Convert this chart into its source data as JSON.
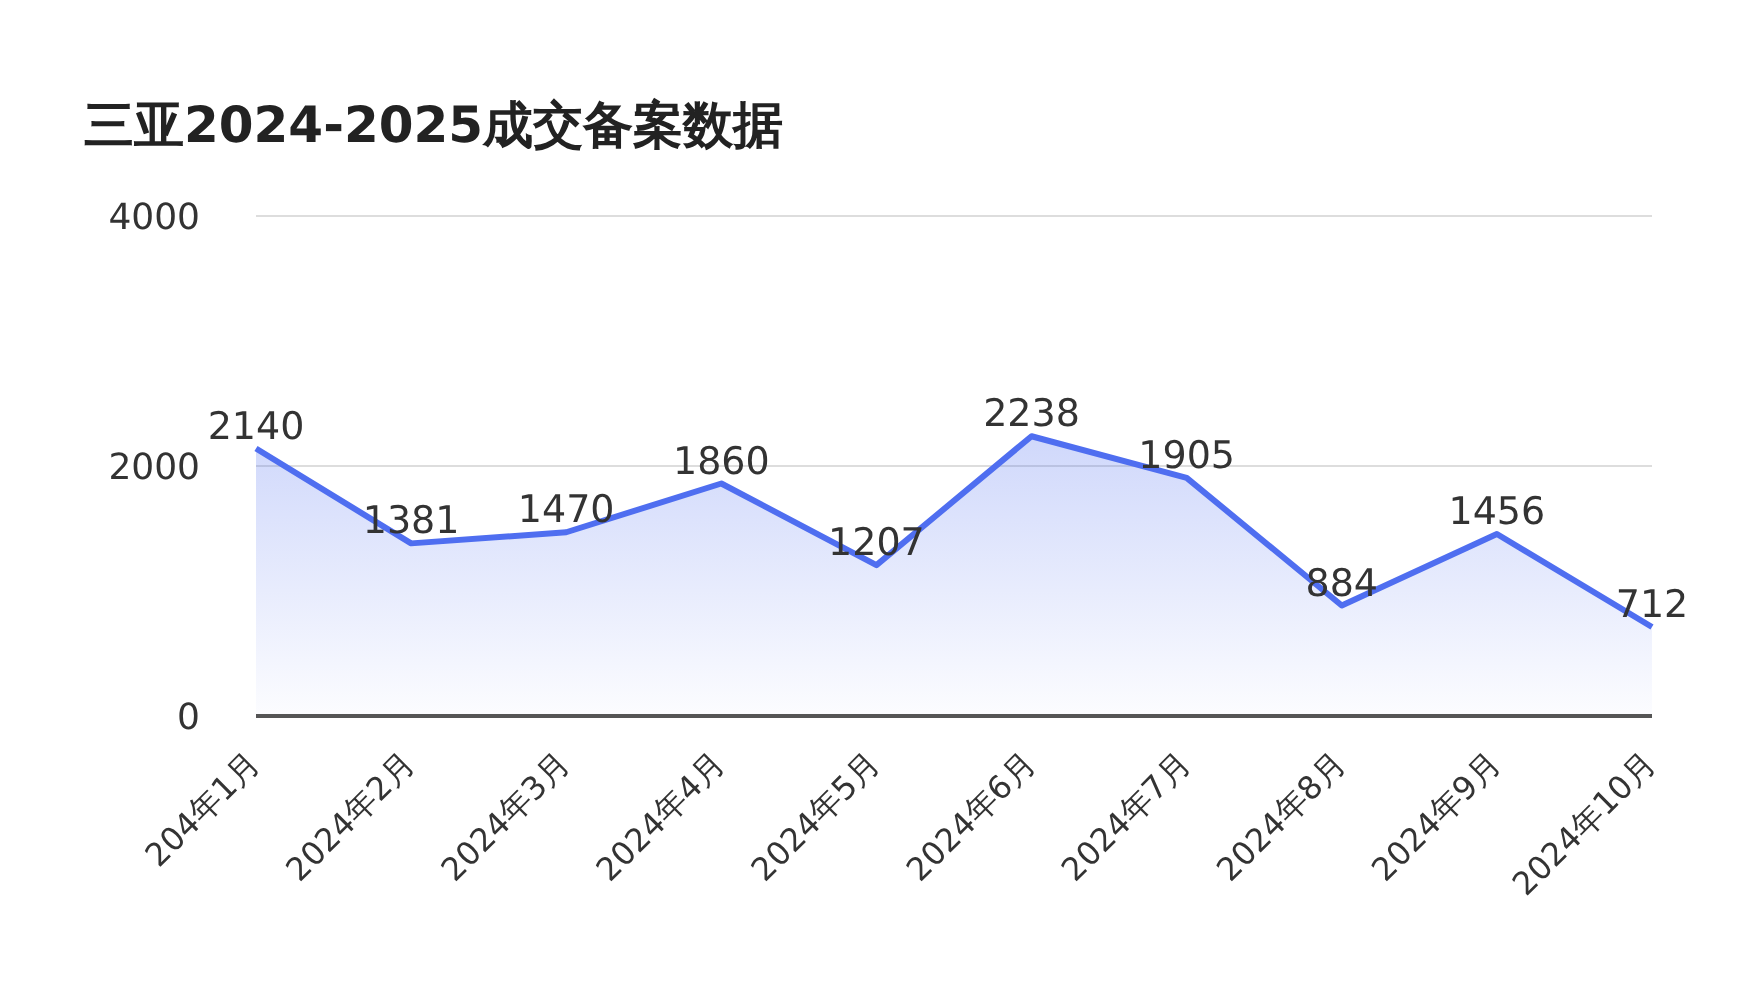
{
  "chart_data": {
    "type": "area",
    "title": "三亚2024-2025成交备案数据",
    "categories": [
      "204年1月",
      "2024年2月",
      "2024年3月",
      "2024年4月",
      "2024年5月",
      "2024年6月",
      "2024年7月",
      "2024年8月",
      "2024年9月",
      "2024年10月"
    ],
    "series": [
      {
        "color": "#4f6ef0",
        "values": [
          2140,
          1381,
          1470,
          1860,
          1207,
          2238,
          1905,
          884,
          1456,
          712
        ]
      }
    ],
    "ylim": [
      0,
      4000
    ],
    "yticks": [
      0,
      2000,
      4000
    ],
    "grid": "y",
    "data_labels": true,
    "legend": false,
    "marker": "none"
  }
}
